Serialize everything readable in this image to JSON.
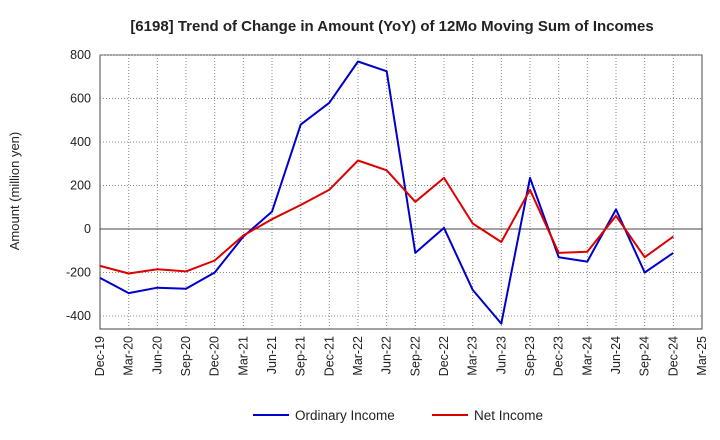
{
  "chart_data": {
    "type": "line",
    "title": "[6198]  Trend of Change in Amount (YoY) of 12Mo Moving Sum of Incomes",
    "xlabel": "",
    "ylabel": "Amount (million yen)",
    "ylim": [
      -460,
      800
    ],
    "yticks": [
      800,
      600,
      400,
      200,
      0,
      -200,
      -400
    ],
    "categories": [
      "Dec-19",
      "Mar-20",
      "Jun-20",
      "Sep-20",
      "Dec-20",
      "Mar-21",
      "Jun-21",
      "Sep-21",
      "Dec-21",
      "Mar-22",
      "Jun-22",
      "Sep-22",
      "Dec-22",
      "Mar-23",
      "Jun-23",
      "Sep-23",
      "Dec-23",
      "Mar-24",
      "Jun-24",
      "Sep-24",
      "Dec-24",
      "Mar-25"
    ],
    "series": [
      {
        "name": "Ordinary Income",
        "color": "#0000cc",
        "values": [
          -225,
          -295,
          -270,
          -275,
          -200,
          -35,
          80,
          480,
          580,
          770,
          725,
          -110,
          5,
          -280,
          -435,
          235,
          -130,
          -150,
          90,
          -200,
          -110,
          null
        ]
      },
      {
        "name": "Net Income",
        "color": "#dd0000",
        "values": [
          -170,
          -205,
          -185,
          -195,
          -145,
          -30,
          45,
          110,
          180,
          315,
          270,
          125,
          235,
          25,
          -60,
          180,
          -110,
          -105,
          60,
          -130,
          -35,
          null
        ]
      }
    ],
    "grid": true,
    "legend_position": "bottom-center"
  }
}
